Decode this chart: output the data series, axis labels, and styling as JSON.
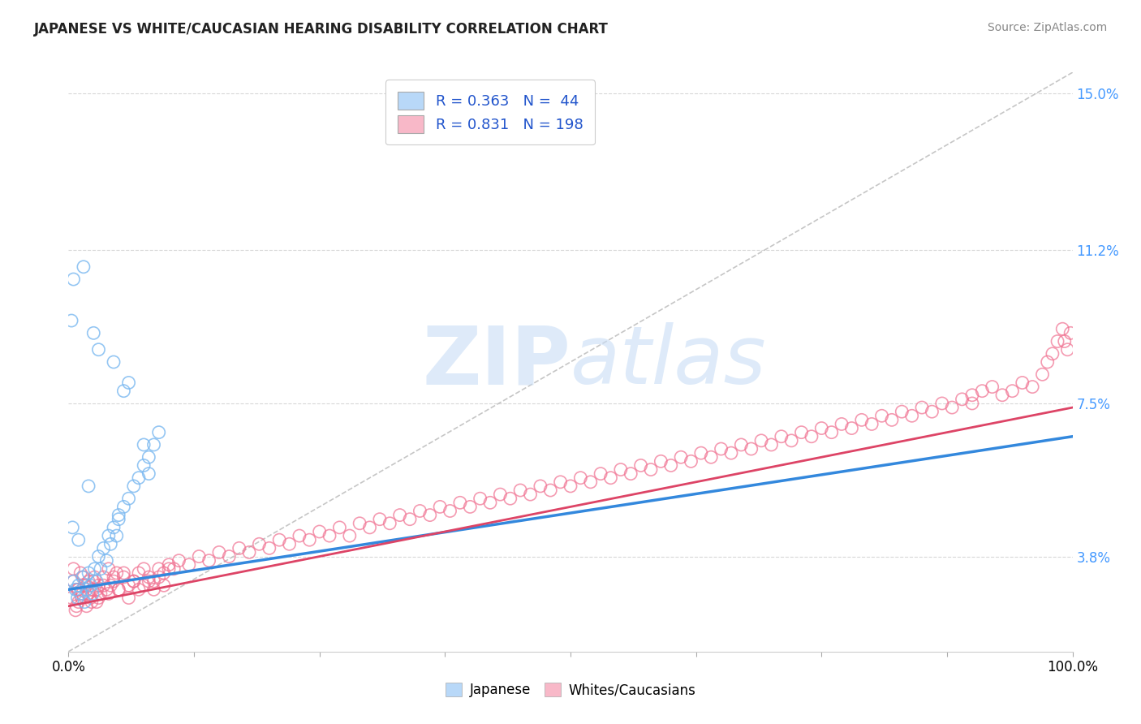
{
  "title": "JAPANESE VS WHITE/CAUCASIAN HEARING DISABILITY CORRELATION CHART",
  "source": "Source: ZipAtlas.com",
  "x_range": [
    0,
    100
  ],
  "y_range": [
    1.5,
    15.5
  ],
  "yticks": [
    3.8,
    7.5,
    11.2,
    15.0
  ],
  "ytick_labels": [
    "3.8%",
    "7.5%",
    "11.2%",
    "15.0%"
  ],
  "japanese_color": "#7ab8f0",
  "caucasian_color": "#f07090",
  "blue_line_color": "#3388dd",
  "pink_line_color": "#dd4466",
  "ref_line_color": "#b8b8b8",
  "background_color": "#ffffff",
  "watermark_color": "#c8ddf5",
  "grid_color": "#d8d8d8",
  "title_color": "#222222",
  "source_color": "#888888",
  "tick_color": "#4499ff",
  "xlabel_color": "#000000",
  "japanese_points": [
    [
      0.5,
      3.2
    ],
    [
      0.7,
      3.0
    ],
    [
      0.9,
      2.8
    ],
    [
      1.0,
      3.1
    ],
    [
      1.2,
      2.9
    ],
    [
      1.4,
      3.3
    ],
    [
      1.6,
      2.7
    ],
    [
      1.8,
      3.0
    ],
    [
      2.0,
      3.4
    ],
    [
      2.2,
      3.1
    ],
    [
      2.4,
      2.9
    ],
    [
      2.6,
      3.5
    ],
    [
      2.8,
      3.2
    ],
    [
      3.0,
      3.8
    ],
    [
      3.2,
      3.5
    ],
    [
      3.5,
      4.0
    ],
    [
      3.8,
      3.7
    ],
    [
      4.0,
      4.3
    ],
    [
      4.2,
      4.1
    ],
    [
      4.5,
      4.5
    ],
    [
      4.8,
      4.3
    ],
    [
      5.0,
      4.7
    ],
    [
      5.5,
      5.0
    ],
    [
      6.0,
      5.2
    ],
    [
      6.5,
      5.5
    ],
    [
      7.0,
      5.7
    ],
    [
      7.5,
      6.0
    ],
    [
      8.0,
      6.2
    ],
    [
      8.5,
      6.5
    ],
    [
      9.0,
      6.8
    ],
    [
      0.3,
      9.5
    ],
    [
      0.5,
      10.5
    ],
    [
      1.5,
      10.8
    ],
    [
      2.5,
      9.2
    ],
    [
      3.0,
      8.8
    ],
    [
      4.5,
      8.5
    ],
    [
      5.5,
      7.8
    ],
    [
      6.0,
      8.0
    ],
    [
      7.5,
      6.5
    ],
    [
      8.0,
      5.8
    ],
    [
      0.4,
      4.5
    ],
    [
      1.0,
      4.2
    ],
    [
      2.0,
      5.5
    ],
    [
      5.0,
      4.8
    ]
  ],
  "caucasian_points": [
    [
      0.3,
      2.8
    ],
    [
      0.5,
      3.2
    ],
    [
      0.7,
      2.5
    ],
    [
      0.9,
      3.0
    ],
    [
      1.0,
      2.7
    ],
    [
      1.2,
      3.4
    ],
    [
      1.4,
      2.9
    ],
    [
      1.6,
      3.1
    ],
    [
      1.8,
      2.6
    ],
    [
      2.0,
      3.2
    ],
    [
      2.2,
      2.8
    ],
    [
      2.4,
      3.0
    ],
    [
      2.6,
      3.3
    ],
    [
      2.8,
      2.7
    ],
    [
      3.0,
      3.1
    ],
    [
      3.2,
      2.9
    ],
    [
      3.5,
      3.3
    ],
    [
      3.8,
      3.0
    ],
    [
      4.0,
      3.5
    ],
    [
      4.2,
      3.1
    ],
    [
      4.5,
      3.2
    ],
    [
      4.8,
      3.4
    ],
    [
      5.0,
      3.0
    ],
    [
      5.5,
      3.3
    ],
    [
      6.0,
      3.1
    ],
    [
      6.5,
      3.2
    ],
    [
      7.0,
      3.4
    ],
    [
      7.5,
      3.1
    ],
    [
      8.0,
      3.3
    ],
    [
      8.5,
      3.2
    ],
    [
      9.0,
      3.5
    ],
    [
      9.5,
      3.4
    ],
    [
      10.0,
      3.6
    ],
    [
      10.5,
      3.5
    ],
    [
      11.0,
      3.7
    ],
    [
      12.0,
      3.6
    ],
    [
      13.0,
      3.8
    ],
    [
      14.0,
      3.7
    ],
    [
      15.0,
      3.9
    ],
    [
      16.0,
      3.8
    ],
    [
      17.0,
      4.0
    ],
    [
      18.0,
      3.9
    ],
    [
      19.0,
      4.1
    ],
    [
      20.0,
      4.0
    ],
    [
      21.0,
      4.2
    ],
    [
      22.0,
      4.1
    ],
    [
      23.0,
      4.3
    ],
    [
      24.0,
      4.2
    ],
    [
      25.0,
      4.4
    ],
    [
      26.0,
      4.3
    ],
    [
      27.0,
      4.5
    ],
    [
      28.0,
      4.3
    ],
    [
      29.0,
      4.6
    ],
    [
      30.0,
      4.5
    ],
    [
      31.0,
      4.7
    ],
    [
      32.0,
      4.6
    ],
    [
      33.0,
      4.8
    ],
    [
      34.0,
      4.7
    ],
    [
      35.0,
      4.9
    ],
    [
      36.0,
      4.8
    ],
    [
      37.0,
      5.0
    ],
    [
      38.0,
      4.9
    ],
    [
      39.0,
      5.1
    ],
    [
      40.0,
      5.0
    ],
    [
      41.0,
      5.2
    ],
    [
      42.0,
      5.1
    ],
    [
      43.0,
      5.3
    ],
    [
      44.0,
      5.2
    ],
    [
      45.0,
      5.4
    ],
    [
      46.0,
      5.3
    ],
    [
      47.0,
      5.5
    ],
    [
      48.0,
      5.4
    ],
    [
      49.0,
      5.6
    ],
    [
      50.0,
      5.5
    ],
    [
      51.0,
      5.7
    ],
    [
      52.0,
      5.6
    ],
    [
      53.0,
      5.8
    ],
    [
      54.0,
      5.7
    ],
    [
      55.0,
      5.9
    ],
    [
      56.0,
      5.8
    ],
    [
      57.0,
      6.0
    ],
    [
      58.0,
      5.9
    ],
    [
      59.0,
      6.1
    ],
    [
      60.0,
      6.0
    ],
    [
      61.0,
      6.2
    ],
    [
      62.0,
      6.1
    ],
    [
      63.0,
      6.3
    ],
    [
      64.0,
      6.2
    ],
    [
      65.0,
      6.4
    ],
    [
      66.0,
      6.3
    ],
    [
      67.0,
      6.5
    ],
    [
      68.0,
      6.4
    ],
    [
      69.0,
      6.6
    ],
    [
      70.0,
      6.5
    ],
    [
      71.0,
      6.7
    ],
    [
      72.0,
      6.6
    ],
    [
      73.0,
      6.8
    ],
    [
      74.0,
      6.7
    ],
    [
      75.0,
      6.9
    ],
    [
      76.0,
      6.8
    ],
    [
      77.0,
      7.0
    ],
    [
      78.0,
      6.9
    ],
    [
      79.0,
      7.1
    ],
    [
      80.0,
      7.0
    ],
    [
      81.0,
      7.2
    ],
    [
      82.0,
      7.1
    ],
    [
      83.0,
      7.3
    ],
    [
      84.0,
      7.2
    ],
    [
      85.0,
      7.4
    ],
    [
      86.0,
      7.3
    ],
    [
      87.0,
      7.5
    ],
    [
      88.0,
      7.4
    ],
    [
      89.0,
      7.6
    ],
    [
      90.0,
      7.5
    ],
    [
      0.5,
      3.5
    ],
    [
      1.0,
      3.0
    ],
    [
      1.5,
      3.3
    ],
    [
      2.0,
      2.9
    ],
    [
      2.5,
      3.2
    ],
    [
      3.0,
      2.8
    ],
    [
      3.5,
      3.1
    ],
    [
      4.0,
      2.9
    ],
    [
      4.5,
      3.3
    ],
    [
      5.0,
      3.0
    ],
    [
      5.5,
      3.4
    ],
    [
      6.0,
      2.8
    ],
    [
      6.5,
      3.2
    ],
    [
      7.0,
      3.0
    ],
    [
      7.5,
      3.5
    ],
    [
      8.0,
      3.2
    ],
    [
      8.5,
      3.0
    ],
    [
      9.0,
      3.3
    ],
    [
      9.5,
      3.1
    ],
    [
      10.0,
      3.5
    ],
    [
      0.8,
      2.6
    ],
    [
      1.3,
      2.8
    ],
    [
      1.8,
      3.1
    ],
    [
      2.3,
      2.7
    ],
    [
      2.8,
      3.0
    ],
    [
      90.0,
      7.7
    ],
    [
      91.0,
      7.8
    ],
    [
      92.0,
      7.9
    ],
    [
      93.0,
      7.7
    ],
    [
      94.0,
      7.8
    ],
    [
      95.0,
      8.0
    ],
    [
      96.0,
      7.9
    ],
    [
      97.0,
      8.2
    ],
    [
      97.5,
      8.5
    ],
    [
      98.0,
      8.7
    ],
    [
      98.5,
      9.0
    ],
    [
      99.0,
      9.3
    ],
    [
      99.2,
      9.0
    ],
    [
      99.5,
      8.8
    ],
    [
      99.8,
      9.2
    ]
  ],
  "blue_line_x": [
    0,
    100
  ],
  "blue_line_y_intercept": 3.0,
  "blue_line_slope": 0.037,
  "pink_line_x": [
    0,
    100
  ],
  "pink_line_y_intercept": 2.6,
  "pink_line_slope": 0.048
}
